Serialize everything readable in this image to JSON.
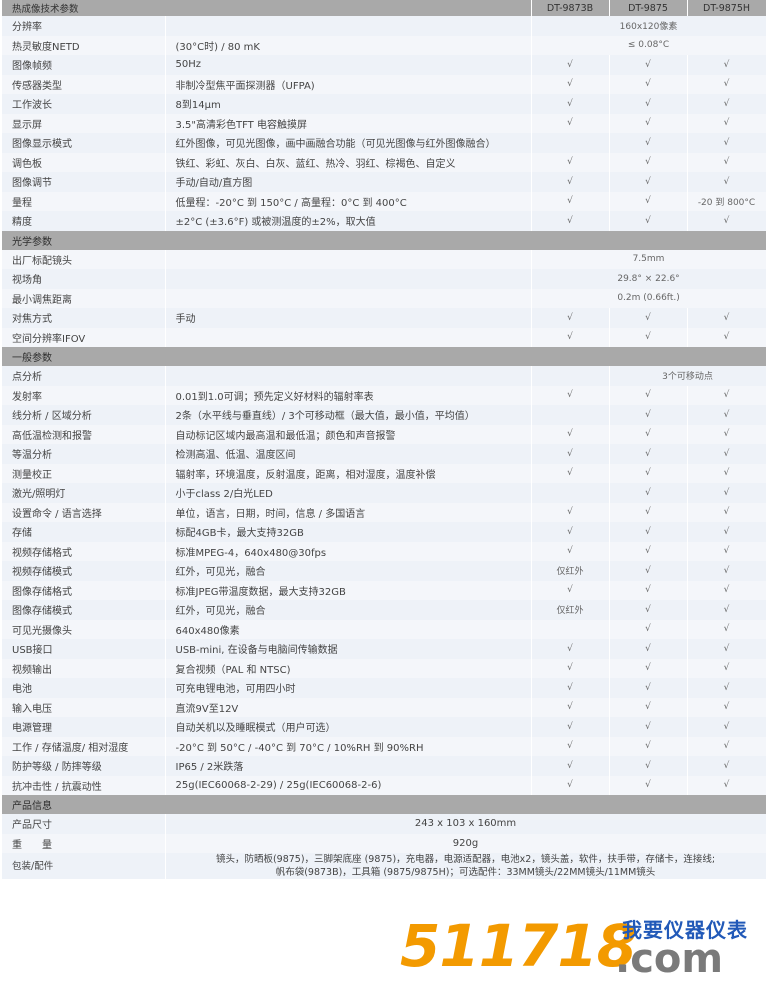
{
  "header": {
    "title": "热成像技术参数",
    "models": [
      "DT-9873B",
      "DT-9875",
      "DT-9875H"
    ]
  },
  "check": "√",
  "sections": [
    {
      "title": "热成像技术参数",
      "rows": [
        {
          "label": "分辨率",
          "desc": "",
          "span": "160x120像素"
        },
        {
          "label": "热灵敏度NETD",
          "desc": "(30°C时) / 80 mK",
          "span": "≤ 0.08°C"
        },
        {
          "label": "图像帧频",
          "desc": "50Hz",
          "cells": [
            "√",
            "√",
            "√"
          ]
        },
        {
          "label": "传感器类型",
          "desc": "非制冷型焦平面探测器（UFPA)",
          "cells": [
            "√",
            "√",
            "√"
          ]
        },
        {
          "label": "工作波长",
          "desc": "8到14μm",
          "cells": [
            "√",
            "√",
            "√"
          ]
        },
        {
          "label": "显示屏",
          "desc": "3.5\"高清彩色TFT 电容触摸屏",
          "cells": [
            "√",
            "√",
            "√"
          ]
        },
        {
          "label": "图像显示模式",
          "desc": "红外图像，可见光图像，画中画融合功能（可见光图像与红外图像融合）",
          "cells": [
            "",
            "√",
            "√"
          ]
        },
        {
          "label": "调色板",
          "desc": "铁红、彩虹、灰白、白灰、蓝红、热冷、羽红、棕褐色、自定义",
          "cells": [
            "√",
            "√",
            "√"
          ]
        },
        {
          "label": "图像调节",
          "desc": "手动/自动/直方图",
          "cells": [
            "√",
            "√",
            "√"
          ]
        },
        {
          "label": "量程",
          "desc": "低量程：-20°C 到 150°C / 高量程：0°C 到 400°C",
          "cells": [
            "√",
            "√",
            "-20 到 800°C"
          ]
        },
        {
          "label": "精度",
          "desc": "±2°C (±3.6°F) 或被测温度的±2%，取大值",
          "cells": [
            "√",
            "√",
            "√"
          ]
        }
      ]
    },
    {
      "title": "光学参数",
      "rows": [
        {
          "label": "出厂标配镜头",
          "desc": "",
          "span": "7.5mm"
        },
        {
          "label": "视场角",
          "desc": "",
          "span": "29.8° × 22.6°"
        },
        {
          "label": "最小调焦距离",
          "desc": "",
          "span": "0.2m (0.66ft.)"
        },
        {
          "label": "对焦方式",
          "desc": "手动",
          "cells": [
            "√",
            "√",
            "√"
          ]
        },
        {
          "label": "空间分辨率IFOV",
          "desc": "",
          "cells": [
            "√",
            "√",
            "√"
          ]
        }
      ]
    },
    {
      "title": "一般参数",
      "rows": [
        {
          "label": "点分析",
          "desc": "",
          "cells": [
            ""
          ],
          "span2": "3个可移动点"
        },
        {
          "label": "发射率",
          "desc": "0.01到1.0可调；预先定义好材料的辐射率表",
          "cells": [
            "√",
            "√",
            "√"
          ]
        },
        {
          "label": "线分析 / 区域分析",
          "desc": "2条（水平线与垂直线）/ 3个可移动框（最大值，最小值，平均值）",
          "cells": [
            "",
            "√",
            "√"
          ]
        },
        {
          "label": "高低温检测和报警",
          "desc": "自动标记区域内最高温和最低温；颜色和声音报警",
          "cells": [
            "√",
            "√",
            "√"
          ]
        },
        {
          "label": "等温分析",
          "desc": "检测高温、低温、温度区间",
          "cells": [
            "√",
            "√",
            "√"
          ]
        },
        {
          "label": "测量校正",
          "desc": "辐射率，环境温度，反射温度，距离，相对湿度，温度补偿",
          "cells": [
            "√",
            "√",
            "√"
          ]
        },
        {
          "label": "激光/照明灯",
          "desc": "小于class 2/白光LED",
          "cells": [
            "",
            "√",
            "√"
          ]
        },
        {
          "label": "设置命令 / 语言选择",
          "desc": "单位，语言，日期，时间，信息 / 多国语言",
          "cells": [
            "√",
            "√",
            "√"
          ]
        },
        {
          "label": "存储",
          "desc": "标配4GB卡，最大支持32GB",
          "cells": [
            "√",
            "√",
            "√"
          ]
        },
        {
          "label": "视频存储格式",
          "desc": "标准MPEG-4，640x480@30fps",
          "cells": [
            "√",
            "√",
            "√"
          ]
        },
        {
          "label": "视频存储模式",
          "desc": "红外，可见光，融合",
          "cells": [
            "仅红外",
            "√",
            "√"
          ]
        },
        {
          "label": "图像存储格式",
          "desc": "标准JPEG带温度数据，最大支持32GB",
          "cells": [
            "√",
            "√",
            "√"
          ]
        },
        {
          "label": "图像存储模式",
          "desc": "红外，可见光，融合",
          "cells": [
            "仅红外",
            "√",
            "√"
          ]
        },
        {
          "label": "可见光摄像头",
          "desc": "640x480像素",
          "cells": [
            "",
            "√",
            "√"
          ]
        },
        {
          "label": "USB接口",
          "desc": "USB-mini, 在设备与电脑间传输数据",
          "cells": [
            "√",
            "√",
            "√"
          ]
        },
        {
          "label": "视频输出",
          "desc": "复合视频（PAL 和 NTSC)",
          "cells": [
            "√",
            "√",
            "√"
          ]
        },
        {
          "label": "电池",
          "desc": "可充电锂电池，可用四小时",
          "cells": [
            "√",
            "√",
            "√"
          ]
        },
        {
          "label": "输入电压",
          "desc": "直流9V至12V",
          "cells": [
            "√",
            "√",
            "√"
          ]
        },
        {
          "label": "电源管理",
          "desc": "自动关机以及睡眠模式（用户可选）",
          "cells": [
            "√",
            "√",
            "√"
          ]
        },
        {
          "label": "工作 / 存储温度/ 相对湿度",
          "desc": "-20°C 到 50°C / -40°C 到 70°C / 10%RH 到 90%RH",
          "cells": [
            "√",
            "√",
            "√"
          ]
        },
        {
          "label": "防护等级 / 防摔等级",
          "desc": "IP65 / 2米跌落",
          "cells": [
            "√",
            "√",
            "√"
          ]
        },
        {
          "label": "抗冲击性 / 抗震动性",
          "desc": "25g(IEC60068-2-29) / 25g(IEC60068-2-6)",
          "cells": [
            "√",
            "√",
            "√"
          ]
        }
      ]
    },
    {
      "title": "产品信息",
      "rows": [
        {
          "label": "产品尺寸",
          "full": "243 x 103 x 160mm"
        },
        {
          "label": "重　　量",
          "full": "920g"
        },
        {
          "label": "包装/配件",
          "full": "镜头，防晒板(9875)，三脚架底座 (9875)，充电器，电源适配器，电池x2，镜头盖，软件，扶手带，存储卡，连接线;",
          "full2": "帆布袋(9873B)，工具箱 (9875/9875H)；可选配件：33MM镜头/22MM镜头/11MM镜头"
        }
      ]
    }
  ],
  "watermark": {
    "number": "511718",
    "domain": ".com",
    "site_name": "我要仪器仪表",
    "colors": {
      "number": "#f39a00",
      "domain": "#7a7a7a",
      "site_name": "#2159b8"
    }
  }
}
